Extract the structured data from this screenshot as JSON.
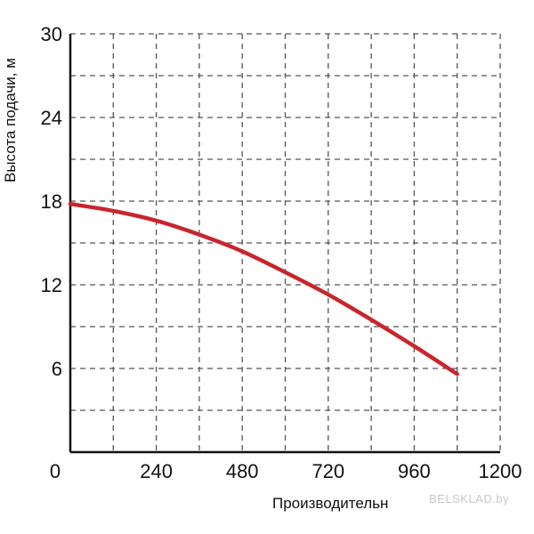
{
  "chart_data": {
    "type": "line",
    "xlabel": "Производительн",
    "ylabel": "Высота подачи, м",
    "xlim": [
      0,
      1200
    ],
    "ylim": [
      0,
      30
    ],
    "x_ticks": [
      0,
      240,
      480,
      720,
      960,
      1200
    ],
    "x_tick_labels": [
      "0",
      "240",
      "480",
      "720",
      "960",
      "1200"
    ],
    "y_ticks": [
      6,
      12,
      18,
      24,
      30
    ],
    "y_tick_labels": [
      "6",
      "12",
      "18",
      "24",
      "30"
    ],
    "x_minor_step": 120,
    "y_minor_step": 3,
    "grid": true,
    "series": [
      {
        "color": "#c8262e",
        "x": [
          0,
          120,
          240,
          360,
          480,
          600,
          720,
          840,
          960,
          1080
        ],
        "y": [
          17.8,
          17.3,
          16.6,
          15.6,
          14.4,
          12.9,
          11.3,
          9.5,
          7.6,
          5.6
        ]
      }
    ]
  },
  "watermark": "BELSKLAD.by"
}
